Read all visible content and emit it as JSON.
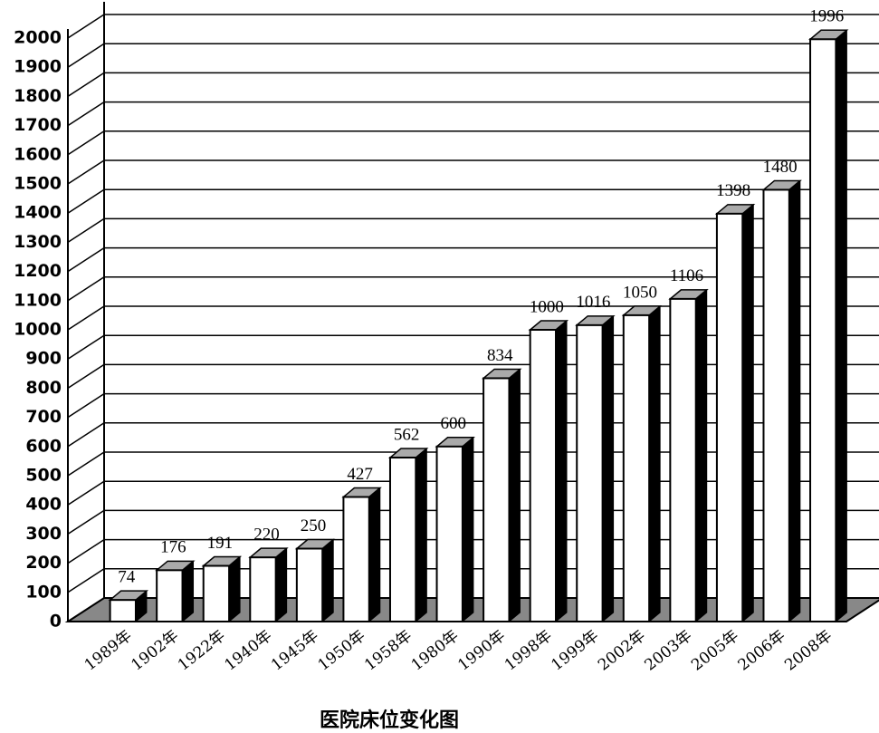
{
  "chart_data": {
    "type": "bar3d",
    "title": "医院床位变化图",
    "categories": [
      "1989年",
      "1902年",
      "1922年",
      "1940年",
      "1945年",
      "1950年",
      "1958年",
      "1980年",
      "1990年",
      "1998年",
      "1999年",
      "2002年",
      "2003年",
      "2005年",
      "2006年",
      "2008年"
    ],
    "values": [
      74,
      176,
      191,
      220,
      250,
      427,
      562,
      600,
      834,
      1000,
      1016,
      1050,
      1106,
      1398,
      1480,
      1996
    ],
    "color": "#ffffff",
    "ylim": [
      0,
      2000
    ],
    "yticks": [
      0,
      100,
      200,
      300,
      400,
      500,
      600,
      700,
      800,
      900,
      1000,
      1100,
      1200,
      1300,
      1400,
      1500,
      1600,
      1700,
      1800,
      1900,
      2000
    ],
    "grid": true
  }
}
